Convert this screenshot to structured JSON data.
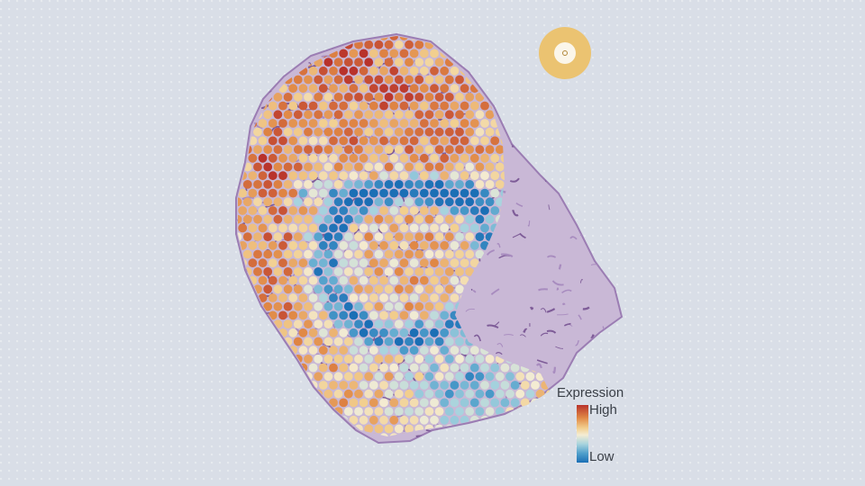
{
  "figure": {
    "description_colors": {
      "background": "#d9dee7",
      "tissue_stain": "#8e6fa6",
      "fiducial": "#ebc371"
    },
    "legend": {
      "title": "Expression",
      "high_label": "High",
      "low_label": "Low",
      "scale_colors": [
        "#b8322b",
        "#e08845",
        "#f2cf8f",
        "#f4ecd3",
        "#a7d3de",
        "#4f9fcb",
        "#1b6fb5"
      ]
    }
  }
}
